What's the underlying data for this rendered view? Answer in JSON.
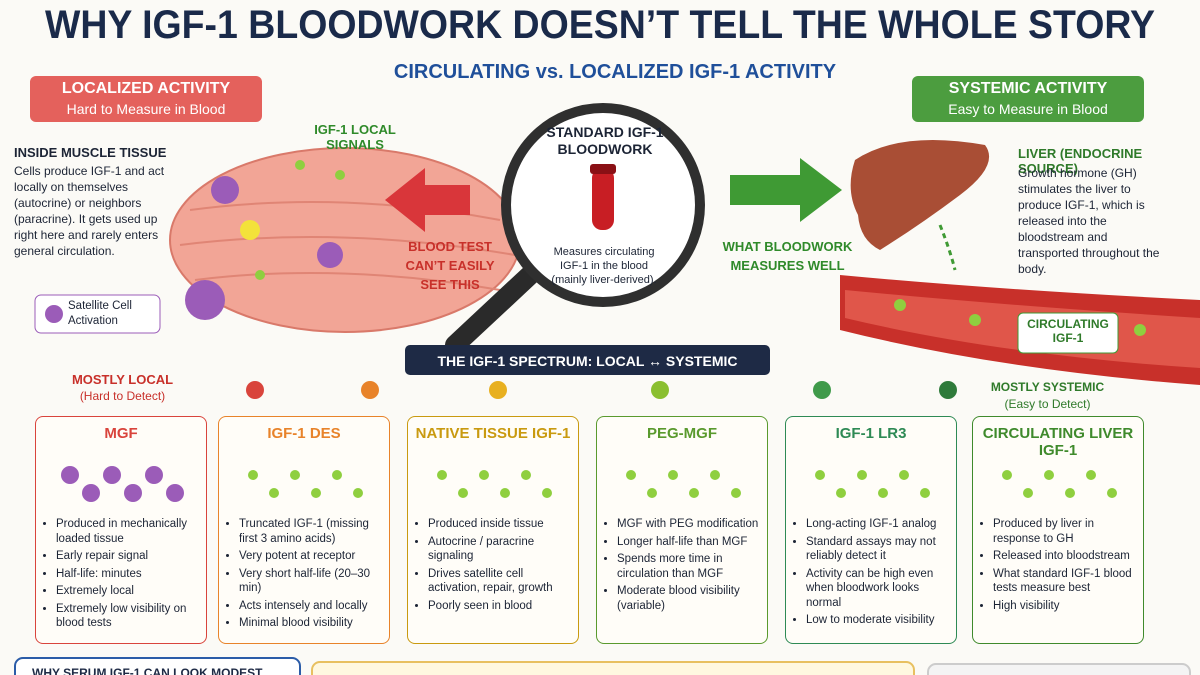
{
  "header": {
    "title": "WHY IGF-1 BLOODWORK DOESN’T TELL THE WHOLE STORY",
    "subtitle": "CIRCULATING vs. LOCALIZED IGF-1 ACTIVITY"
  },
  "left_panel": {
    "badge_title": "LOCALIZED ACTIVITY",
    "badge_subtitle": "Hard to Measure in Blood",
    "heading": "INSIDE MUSCLE TISSUE",
    "text": "Cells produce IGF-1 and act locally on themselves (autocrine) or neighbors (paracrine). It gets used up right here and rarely enters general circulation.",
    "signals_label": "IGF-1 LOCAL SIGNALS",
    "satellite_label": "Satellite Cell Activation",
    "blood_test_note": "BLOOD TEST CAN’T EASILY SEE THIS"
  },
  "center": {
    "heading": "STANDARD IGF-1 BLOODWORK",
    "text": "Measures circulating IGF-1 in the blood (mainly liver-derived)."
  },
  "right_panel": {
    "badge_title": "SYSTEMIC ACTIVITY",
    "badge_subtitle": "Easy to Measure in Blood",
    "heading": "LIVER (ENDOCRINE SOURCE)",
    "text": "Growth hormone (GH) stimulates the liver to produce IGF-1, which is released into the bloodstream and transported throughout the body.",
    "circulating_label": "CIRCULATING IGF-1",
    "bloodwork_note": "WHAT BLOODWORK MEASURES WELL"
  },
  "spectrum": {
    "title": "THE IGF-1 SPECTRUM: LOCAL ↔ SYSTEMIC",
    "left_label": "MOSTLY LOCAL",
    "left_sublabel": "(Hard to Detect)",
    "right_label": "MOSTLY SYSTEMIC",
    "right_sublabel": "(Easy to Detect)"
  },
  "cards": [
    {
      "title": "MGF",
      "color": "#d9443c",
      "bullets": [
        "Produced in mechanically loaded tissue",
        "Early repair signal",
        "Half-life: minutes",
        "Extremely local",
        "Extremely low visibility on blood tests"
      ]
    },
    {
      "title": "IGF-1 DES",
      "color": "#e8832a",
      "bullets": [
        "Truncated IGF-1 (missing first 3 amino acids)",
        "Very potent at receptor",
        "Very short half-life (20–30 min)",
        "Acts intensely and locally",
        "Minimal blood visibility"
      ]
    },
    {
      "title": "NATIVE TISSUE IGF-1",
      "color": "#c99a10",
      "bullets": [
        "Produced inside tissue",
        "Autocrine / paracrine signaling",
        "Drives satellite cell activation, repair, growth",
        "Poorly seen in blood"
      ]
    },
    {
      "title": "PEG-MGF",
      "color": "#5a9a2e",
      "bullets": [
        "MGF with PEG modification",
        "Longer half-life than MGF",
        "Spends more time in circulation than MGF",
        "Moderate blood visibility (variable)"
      ]
    },
    {
      "title": "IGF-1 LR3",
      "color": "#2e8a55",
      "bullets": [
        "Long-acting IGF-1 analog",
        "Standard assays may not reliably detect it",
        "Activity can be high even when bloodwork looks normal",
        "Low to moderate visibility"
      ]
    },
    {
      "title": "CIRCULATING LIVER IGF-1",
      "color": "#3f8a2c",
      "bullets": [
        "Produced by liver in response to GH",
        "Released into bloodstream",
        "What standard IGF-1 blood tests measure best",
        "High visibility"
      ]
    }
  ],
  "footer": {
    "left_heading": "WHY SERUM IGF-1 CAN LOOK MODEST"
  }
}
